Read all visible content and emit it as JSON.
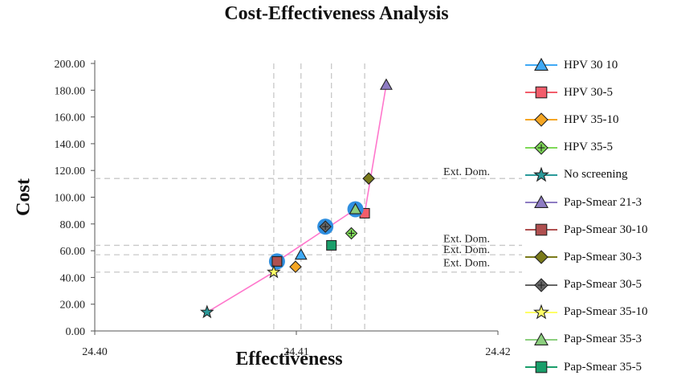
{
  "chart_data": {
    "type": "scatter",
    "title": "Cost-Effectiveness Analysis",
    "xlabel": "Effectiveness",
    "ylabel": "Cost",
    "xlim": [
      24.4,
      24.42
    ],
    "ylim": [
      0,
      200
    ],
    "x_ticks": [
      "24.40",
      "24.41",
      "24.42"
    ],
    "x_tick_values": [
      24.4,
      24.41,
      24.42
    ],
    "y_ticks": [
      "0.00",
      "20.00",
      "40.00",
      "60.00",
      "80.00",
      "100.00",
      "120.00",
      "140.00",
      "160.00",
      "180.00",
      "200.00"
    ],
    "y_tick_values": [
      0,
      20,
      40,
      60,
      80,
      100,
      120,
      140,
      160,
      180,
      200
    ],
    "grid": false,
    "legend_position": "right",
    "frontier_color": "#ff77cc",
    "reference_line_color": "#c8c8c8",
    "frontier": [
      [
        24.40557,
        14
      ],
      [
        24.40888,
        44
      ],
      [
        24.40904,
        52
      ],
      [
        24.41293,
        91
      ],
      [
        24.41339,
        88
      ],
      [
        24.41446,
        184
      ]
    ],
    "vertical_refs": [
      24.40888,
      24.41023,
      24.41174,
      24.41339
    ],
    "horizontal_refs": [
      {
        "y": 114,
        "label": "Ext. Dom."
      },
      {
        "y": 64,
        "label": "Ext. Dom."
      },
      {
        "y": 57,
        "label": "Ext. Dom."
      },
      {
        "y": 44,
        "label": "Ext. Dom."
      }
    ],
    "series": [
      {
        "name": "HPV 30 10",
        "marker": "triangle",
        "color": "#3fa9f5",
        "x": 24.41023,
        "y": 57
      },
      {
        "name": "HPV 30-5",
        "marker": "square",
        "color": "#f25d6b",
        "x": 24.41339,
        "y": 88
      },
      {
        "name": "HPV 35-10",
        "marker": "diamond",
        "color": "#f5a623",
        "x": 24.40996,
        "y": 48
      },
      {
        "name": "HPV 35-5",
        "marker": "crossdiamond",
        "color": "#7ed957",
        "x": 24.41273,
        "y": 73
      },
      {
        "name": "No screening",
        "marker": "star",
        "color": "#2a9a9a",
        "x": 24.40557,
        "y": 14
      },
      {
        "name": "Pap-Smear 21-3",
        "marker": "triangle",
        "color": "#8e7cc3",
        "x": 24.41446,
        "y": 184
      },
      {
        "name": "Pap-Smear 30-10",
        "marker": "square",
        "color": "#b05050",
        "x": 24.40904,
        "y": 52
      },
      {
        "name": "Pap-Smear 30-3",
        "marker": "diamond",
        "color": "#7a7a1a",
        "x": 24.41359,
        "y": 114
      },
      {
        "name": "Pap-Smear 30-5",
        "marker": "crossdiamond",
        "color": "#666666",
        "x": 24.41144,
        "y": 78
      },
      {
        "name": "Pap-Smear 35-10",
        "marker": "star",
        "color": "#ffff66",
        "x": 24.40888,
        "y": 44
      },
      {
        "name": "Pap-Smear 35-3",
        "marker": "triangle",
        "color": "#8ccf7e",
        "x": 24.41293,
        "y": 91
      },
      {
        "name": "Pap-Smear 35-5",
        "marker": "square",
        "color": "#1a9e6a",
        "x": 24.41174,
        "y": 64
      }
    ],
    "highlighted": [
      "Pap-Smear 30-10",
      "Pap-Smear 30-5",
      "Pap-Smear 35-3"
    ],
    "highlight_color": "#2f8fe0"
  }
}
